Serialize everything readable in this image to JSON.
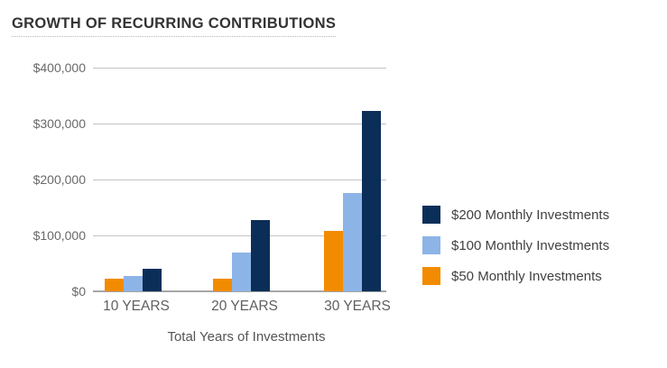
{
  "chart_data": {
    "type": "bar",
    "title": "GROWTH OF RECURRING CONTRIBUTIONS",
    "xlabel": "Total Years of Investments",
    "ylabel": "",
    "categories": [
      "10 YEARS",
      "20 YEARS",
      "30 YEARS"
    ],
    "series": [
      {
        "name": "$50 Monthly Investments",
        "color": "#f38b00",
        "values": [
          22000,
          23000,
          108000
        ]
      },
      {
        "name": "$100 Monthly Investments",
        "color": "#8db4e6",
        "values": [
          28000,
          70000,
          175000
        ]
      },
      {
        "name": "$200 Monthly Investments",
        "color": "#0b2e59",
        "values": [
          40000,
          127000,
          323000
        ]
      }
    ],
    "ylim": [
      0,
      400000
    ],
    "ytick_step": 100000,
    "ytick_labels": [
      "$0",
      "$100,000",
      "$200,000",
      "$300,000",
      "$400,000"
    ],
    "grid": true,
    "legend_position": "right",
    "legend_order_top_to_bottom": [
      "$200 Monthly Investments",
      "$100 Monthly Investments",
      "$50 Monthly Investments"
    ],
    "colors": {
      "series_200": "#0b2e59",
      "series_100": "#8db4e6",
      "series_50": "#f38b00",
      "gridline": "#c4c4c4",
      "axis_line": "#a6a6a6",
      "title_text": "#333333",
      "label_text": "#696969"
    }
  }
}
